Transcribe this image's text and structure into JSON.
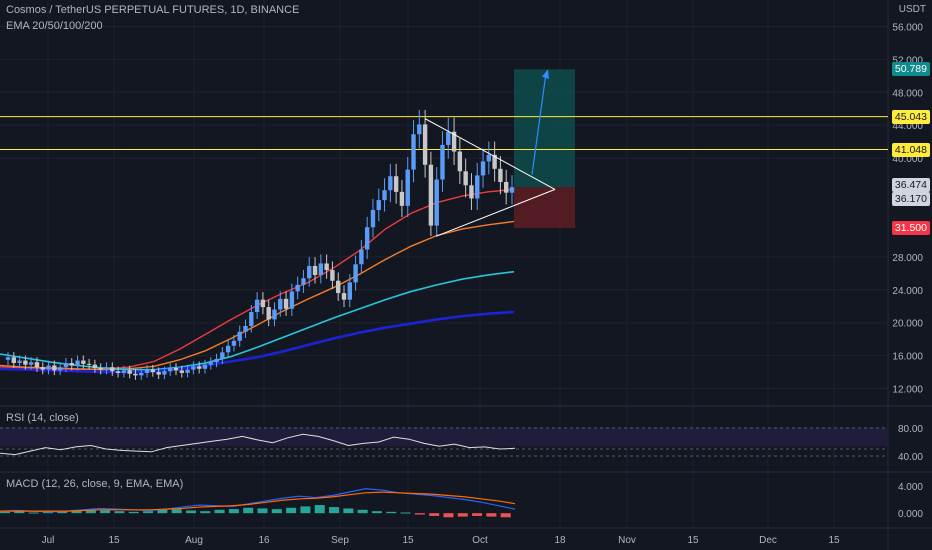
{
  "header": {
    "title": "Cosmos / TetherUS PERPETUAL FUTURES, 1D, BINANCE",
    "indicator": "EMA 20/50/100/200",
    "currency": "USDT"
  },
  "rsi_label": "RSI (14, close)",
  "macd_label": "MACD (12, 26, close, 9, EMA, EMA)",
  "colors": {
    "background": "#131722",
    "grid": "#1e222d",
    "up": "#5b9cf6",
    "down": "#c8c8c8",
    "ema20": "#ef3b3b",
    "ema50": "#f57c25",
    "ema100": "#26c6da",
    "ema200": "#1e22d6",
    "hline": "#ffeb3b",
    "tp_box": "#0f4c4c",
    "sl_box": "#5a1d22",
    "rsi": "#e0e0e0",
    "rsi_band": "#1f1d3a",
    "macd_line": "#2962ff",
    "signal_line": "#ff6d00",
    "hist_up": "#26a69a",
    "hist_down": "#ef5350"
  },
  "price_labels": [
    {
      "value": "50.789",
      "bg": "#0f8b8d",
      "fg": "#ffffff"
    },
    {
      "value": "45.043",
      "bg": "#ffeb3b",
      "fg": "#131722"
    },
    {
      "value": "41.048",
      "bg": "#ffeb3b",
      "fg": "#131722"
    },
    {
      "value": "36.474",
      "bg": "#d1d4dc",
      "fg": "#131722"
    },
    {
      "value": "36.170",
      "bg": "#d1d4dc",
      "fg": "#131722"
    },
    {
      "value": "31.500",
      "bg": "#f23645",
      "fg": "#ffffff"
    }
  ],
  "chart_data": {
    "type": "candlestick",
    "y_axis_ticks": [
      "56.000",
      "52.000",
      "48.000",
      "44.000",
      "40.000",
      "28.000",
      "24.000",
      "20.000",
      "16.000",
      "12.000"
    ],
    "x_axis_ticks": [
      "Jul",
      "15",
      "Aug",
      "16",
      "Sep",
      "15",
      "Oct",
      "18",
      "Nov",
      "15",
      "Dec",
      "15"
    ],
    "ylim": [
      10,
      58
    ],
    "horizontal_lines": [
      45.043,
      41.048
    ],
    "trade_box": {
      "entry": 36.474,
      "target": 50.789,
      "stop": 31.5
    },
    "triangle": {
      "top": [
        44.8,
        36.2
      ],
      "bottom": [
        30.5,
        36.2
      ]
    },
    "close_series": [
      15.8,
      15.1,
      15.4,
      14.9,
      15.2,
      14.6,
      14.3,
      14.8,
      14.2,
      14.6,
      15.1,
      14.8,
      15.4,
      15.0,
      14.9,
      14.5,
      14.3,
      14.6,
      14.1,
      13.9,
      14.2,
      13.8,
      13.6,
      13.9,
      14.3,
      14.0,
      13.7,
      14.1,
      14.5,
      14.2,
      13.9,
      14.3,
      14.7,
      14.4,
      14.9,
      15.2,
      15.6,
      16.4,
      17.2,
      17.8,
      18.9,
      19.6,
      21.3,
      22.8,
      21.9,
      20.4,
      21.6,
      22.9,
      21.7,
      23.8,
      24.6,
      25.4,
      26.9,
      25.8,
      27.2,
      26.4,
      25.1,
      23.6,
      22.8,
      24.9,
      27.1,
      28.9,
      31.6,
      33.7,
      34.9,
      36.1,
      37.8,
      35.9,
      34.2,
      38.6,
      42.9,
      44.1,
      39.2,
      31.8,
      37.4,
      41.6,
      43.2,
      40.8,
      38.4,
      36.7,
      35.1,
      37.9,
      39.6,
      40.4,
      38.7,
      37.1,
      35.8,
      36.474
    ],
    "ema_series": {
      "EMA20": [
        14.6,
        14.5,
        14.4,
        14.3,
        14.4,
        14.6,
        15.3,
        16.8,
        18.6,
        20.4,
        22.1,
        23.6,
        24.9,
        26.7,
        28.8,
        31.4,
        33.3,
        34.6,
        35.4,
        35.9,
        36.2
      ],
      "EMA50": [
        14.8,
        14.6,
        14.5,
        14.4,
        14.3,
        14.4,
        14.7,
        15.5,
        16.6,
        18.1,
        19.7,
        21.4,
        22.9,
        24.3,
        25.9,
        27.7,
        29.3,
        30.6,
        31.4,
        31.9,
        32.3
      ],
      "EMA100": [
        16.2,
        15.7,
        15.2,
        14.8,
        14.5,
        14.3,
        14.3,
        14.6,
        15.1,
        15.9,
        17.0,
        18.2,
        19.4,
        20.6,
        21.7,
        22.8,
        23.8,
        24.6,
        25.3,
        25.8,
        26.2
      ],
      "EMA200": [
        14.4,
        14.3,
        14.2,
        14.1,
        14.0,
        14.0,
        14.1,
        14.4,
        14.8,
        15.3,
        15.8,
        16.5,
        17.3,
        18.1,
        18.8,
        19.4,
        19.9,
        20.4,
        20.8,
        21.1,
        21.3
      ]
    },
    "rsi": {
      "levels": [
        80.0,
        40.0
      ],
      "values": [
        44,
        42,
        47,
        52,
        49,
        53,
        55,
        50,
        48,
        47,
        46,
        52,
        55,
        58,
        61,
        64,
        68,
        63,
        59,
        66,
        71,
        68,
        62,
        55,
        58,
        60,
        67,
        64,
        58,
        54,
        57,
        52,
        53,
        50,
        51
      ]
    },
    "macd": {
      "levels": [
        4.0,
        0.0
      ],
      "histogram": [
        0.2,
        0.3,
        0.1,
        0.2,
        0.3,
        0.4,
        0.5,
        0.4,
        0.3,
        0.2,
        0.3,
        0.5,
        0.6,
        0.4,
        0.3,
        0.5,
        0.6,
        0.8,
        0.7,
        0.6,
        0.8,
        1.0,
        1.2,
        0.9,
        0.7,
        0.5,
        0.3,
        0.2,
        0.1,
        -0.2,
        -0.4,
        -0.6,
        -0.5,
        -0.4,
        -0.5,
        -0.6
      ],
      "macd_line": [
        0.3,
        0.4,
        0.3,
        0.2,
        0.3,
        0.5,
        0.7,
        0.6,
        0.5,
        0.4,
        0.6,
        0.9,
        1.2,
        1.1,
        1.0,
        1.4,
        1.8,
        2.2,
        2.5,
        2.3,
        2.6,
        3.1,
        3.6,
        3.4,
        3.0,
        2.8,
        2.6,
        2.3,
        2.0,
        1.6,
        1.1,
        0.6
      ],
      "signal_line": [
        0.3,
        0.3,
        0.3,
        0.3,
        0.3,
        0.4,
        0.5,
        0.5,
        0.5,
        0.5,
        0.6,
        0.7,
        0.9,
        1.0,
        1.1,
        1.3,
        1.6,
        1.9,
        2.1,
        2.2,
        2.4,
        2.7,
        3.0,
        3.1,
        3.0,
        2.9,
        2.8,
        2.6,
        2.4,
        2.1,
        1.8,
        1.4
      ]
    }
  }
}
